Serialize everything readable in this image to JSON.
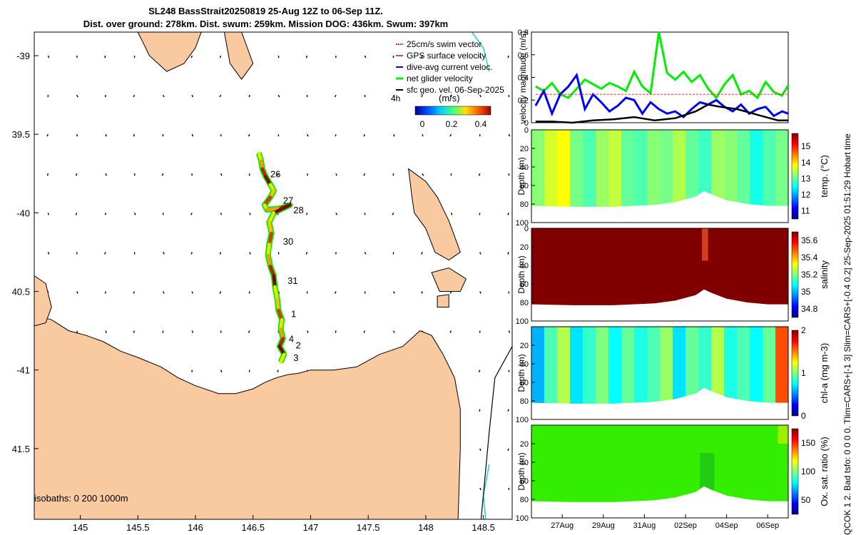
{
  "header": {
    "title_line1": "SL248 BassStrait20250819 25-Aug 12Z to 06-Sep 11Z.",
    "title_line2": "Dist. over ground: 278km. Dist. swum: 259km. Mission DOG: 436km. Swum: 397km"
  },
  "side_text": "QCOK 1  2. Bad tsfo: 0  0  0  0. Tlim=CARS+[-1 3] Slim=CARS+[-0.4 0.2] 25-Sep-2025 01:51:29 Hobart time",
  "colors": {
    "land": "#f9c9a0",
    "swim": "#ff2020",
    "gps": "#c040c0",
    "dive": "#0000ff",
    "net": "#00ee00",
    "sfc": "#000000"
  },
  "chart_data": [
    {
      "type": "map",
      "xlim": [
        144.6,
        148.75
      ],
      "ylim": [
        -41.95,
        -38.85
      ],
      "xticks": [
        145,
        145.5,
        146,
        146.5,
        147,
        147.5,
        148,
        148.5
      ],
      "xtick_labels": [
        "145",
        "145.5",
        "146",
        "146.5",
        "147",
        "147.5",
        "148",
        "148.5"
      ],
      "yticks": [
        -39,
        -39.5,
        -40,
        -40.5,
        -41,
        -41.5
      ],
      "ytick_labels": [
        "-39",
        "39.5",
        "-40",
        "40.5",
        "-41",
        "41.5"
      ],
      "legend": {
        "entries": [
          "25cm/s swim vector",
          "GPS surface velocity",
          "dive-avg current veloc.",
          "net glider velocity",
          "sfc geo. vel. 06-Sep-2025"
        ],
        "scale_label": "4h",
        "colorbar_label": "(m/s)",
        "colorbar_ticks": [
          "0",
          "0.2",
          "0.4"
        ]
      },
      "isobath_label": "isobaths: 0   200  1000m",
      "day_labels": [
        {
          "label": "26",
          "lon": 146.65,
          "lat": -39.75
        },
        {
          "label": "27",
          "lon": 146.76,
          "lat": -39.92
        },
        {
          "label": "28",
          "lon": 146.85,
          "lat": -39.98
        },
        {
          "label": "30",
          "lon": 146.76,
          "lat": -40.18
        },
        {
          "label": "31",
          "lon": 146.8,
          "lat": -40.43
        },
        {
          "label": "1",
          "lon": 146.83,
          "lat": -40.64
        },
        {
          "label": "4",
          "lon": 146.81,
          "lat": -40.8
        },
        {
          "label": "2",
          "lon": 146.87,
          "lat": -40.84
        },
        {
          "label": "3",
          "lon": 146.85,
          "lat": -40.92
        }
      ],
      "track": [
        [
          146.55,
          -39.62
        ],
        [
          146.57,
          -39.67
        ],
        [
          146.58,
          -39.72
        ],
        [
          146.61,
          -39.77
        ],
        [
          146.65,
          -39.82
        ],
        [
          146.68,
          -39.86
        ],
        [
          146.65,
          -39.9
        ],
        [
          146.6,
          -39.95
        ],
        [
          146.62,
          -39.98
        ],
        [
          146.74,
          -39.97
        ],
        [
          146.82,
          -39.95
        ],
        [
          146.68,
          -40.0
        ],
        [
          146.64,
          -40.06
        ],
        [
          146.66,
          -40.13
        ],
        [
          146.64,
          -40.2
        ],
        [
          146.63,
          -40.27
        ],
        [
          146.65,
          -40.34
        ],
        [
          146.68,
          -40.4
        ],
        [
          146.69,
          -40.47
        ],
        [
          146.71,
          -40.55
        ],
        [
          146.72,
          -40.62
        ],
        [
          146.75,
          -40.68
        ],
        [
          146.74,
          -40.74
        ],
        [
          146.76,
          -40.8
        ],
        [
          146.73,
          -40.85
        ],
        [
          146.77,
          -40.9
        ],
        [
          146.74,
          -40.95
        ]
      ],
      "tasmania": [
        [
          144.6,
          -40.65
        ],
        [
          144.75,
          -40.68
        ],
        [
          144.9,
          -40.75
        ],
        [
          145.05,
          -40.78
        ],
        [
          145.2,
          -40.82
        ],
        [
          145.35,
          -40.88
        ],
        [
          145.5,
          -40.92
        ],
        [
          145.7,
          -40.98
        ],
        [
          145.85,
          -41.05
        ],
        [
          146.0,
          -41.1
        ],
        [
          146.2,
          -41.15
        ],
        [
          146.35,
          -41.15
        ],
        [
          146.5,
          -41.12
        ],
        [
          146.6,
          -41.08
        ],
        [
          146.7,
          -41.05
        ],
        [
          146.8,
          -41.03
        ],
        [
          146.9,
          -41.02
        ],
        [
          147.0,
          -41.0
        ],
        [
          147.2,
          -41.0
        ],
        [
          147.4,
          -40.98
        ],
        [
          147.6,
          -40.9
        ],
        [
          147.8,
          -40.85
        ],
        [
          147.95,
          -40.75
        ],
        [
          148.05,
          -40.78
        ],
        [
          148.15,
          -40.9
        ],
        [
          148.25,
          -41.05
        ],
        [
          148.3,
          -41.25
        ],
        [
          148.3,
          -41.5
        ],
        [
          148.28,
          -41.95
        ],
        [
          144.6,
          -41.95
        ]
      ],
      "king_island": [
        [
          144.6,
          -40.4
        ],
        [
          144.7,
          -40.45
        ],
        [
          144.75,
          -40.6
        ],
        [
          144.7,
          -40.7
        ],
        [
          144.6,
          -40.72
        ]
      ],
      "flinders_island": [
        [
          147.85,
          -39.72
        ],
        [
          148.0,
          -39.8
        ],
        [
          148.1,
          -39.9
        ],
        [
          148.2,
          -40.05
        ],
        [
          148.25,
          -40.15
        ],
        [
          148.3,
          -40.25
        ],
        [
          148.2,
          -40.3
        ],
        [
          148.08,
          -40.25
        ],
        [
          148.0,
          -40.1
        ],
        [
          147.9,
          -40.0
        ],
        [
          147.88,
          -39.9
        ]
      ],
      "cape_barren": [
        [
          148.05,
          -40.38
        ],
        [
          148.2,
          -40.35
        ],
        [
          148.35,
          -40.42
        ],
        [
          148.3,
          -40.5
        ],
        [
          148.12,
          -40.5
        ]
      ],
      "clarke_island": [
        [
          148.1,
          -40.53
        ],
        [
          148.2,
          -40.52
        ],
        [
          148.2,
          -40.6
        ],
        [
          148.1,
          -40.6
        ]
      ],
      "wilsons_prom": [
        [
          145.5,
          -38.85
        ],
        [
          146.05,
          -38.85
        ],
        [
          146.0,
          -38.95
        ],
        [
          145.9,
          -39.05
        ],
        [
          145.75,
          -39.1
        ],
        [
          145.6,
          -39.0
        ]
      ],
      "wilsons_tip": [
        [
          146.25,
          -38.85
        ],
        [
          146.4,
          -38.85
        ],
        [
          146.45,
          -38.95
        ],
        [
          146.5,
          -39.05
        ],
        [
          146.4,
          -39.15
        ],
        [
          146.3,
          -39.05
        ]
      ],
      "vector_spacing": 0.25
    },
    {
      "type": "line",
      "ylabel": "velocity magnitude (m/s)",
      "xlim": [
        0,
        12.5
      ],
      "ylim": [
        0,
        0.8
      ],
      "yticks": [
        0,
        0.2,
        0.4,
        0.6,
        0.8
      ],
      "ytick_labels": [
        "0",
        "0.2",
        "0.4",
        "0.6",
        "0.8"
      ],
      "series": [
        {
          "name": "net glider velocity",
          "color": "#00ee00",
          "x": [
            0.2,
            0.6,
            1.0,
            1.4,
            1.8,
            2.2,
            2.6,
            3.0,
            3.4,
            3.8,
            4.2,
            4.6,
            5.0,
            5.4,
            5.8,
            6.2,
            6.6,
            7.0,
            7.4,
            7.8,
            8.2,
            8.6,
            9.0,
            9.4,
            9.8,
            10.2,
            10.6,
            11.0,
            11.4,
            11.8,
            12.2,
            12.5
          ],
          "values": [
            0.32,
            0.28,
            0.35,
            0.25,
            0.22,
            0.3,
            0.38,
            0.34,
            0.3,
            0.35,
            0.32,
            0.28,
            0.45,
            0.32,
            0.26,
            0.8,
            0.44,
            0.38,
            0.45,
            0.36,
            0.42,
            0.3,
            0.22,
            0.34,
            0.42,
            0.25,
            0.28,
            0.22,
            0.36,
            0.27,
            0.24,
            0.33
          ]
        },
        {
          "name": "dive-avg current veloc.",
          "color": "#0000ff",
          "x": [
            0.2,
            0.6,
            1.0,
            1.4,
            1.8,
            2.2,
            2.6,
            3.0,
            3.4,
            3.8,
            4.2,
            4.6,
            5.0,
            5.4,
            5.8,
            6.2,
            6.6,
            7.0,
            7.4,
            7.8,
            8.2,
            8.6,
            9.0,
            9.4,
            9.8,
            10.2,
            10.6,
            11.0,
            11.4,
            11.8,
            12.2,
            12.5
          ],
          "values": [
            0.15,
            0.28,
            0.08,
            0.25,
            0.32,
            0.42,
            0.12,
            0.25,
            0.18,
            0.1,
            0.15,
            0.22,
            0.2,
            0.08,
            0.18,
            0.12,
            0.08,
            0.1,
            0.05,
            0.12,
            0.18,
            0.16,
            0.2,
            0.14,
            0.1,
            0.16,
            0.08,
            0.12,
            0.14,
            0.06,
            0.1,
            0.08
          ]
        },
        {
          "name": "sfc geo. vel.",
          "color": "#000000",
          "x": [
            0.2,
            1,
            2,
            3,
            4,
            5,
            6,
            7,
            8,
            8.6,
            9.2,
            10,
            11,
            12,
            12.5
          ],
          "values": [
            0.01,
            0.01,
            0.0,
            0.02,
            0.03,
            0.05,
            0.02,
            0.04,
            0.1,
            0.16,
            0.14,
            0.12,
            0.07,
            0.02,
            0.02
          ]
        },
        {
          "name": "25cm/s swim vector",
          "color": "#ff2020",
          "x": [
            0.2,
            12.5
          ],
          "values": [
            0.25,
            0.25
          ]
        }
      ]
    },
    {
      "type": "heatmap",
      "variable": "temp",
      "colorbar_label": "temp. (°C)",
      "clim": [
        10.5,
        15.8
      ],
      "cticks": [
        "15",
        "14",
        "13",
        "12",
        "11"
      ],
      "ylabel": "Depth (m)",
      "yticks": [
        "0",
        "20",
        "40",
        "60",
        "80",
        "100"
      ],
      "base_value": 13.2,
      "stripe_values": [
        13.0,
        13.4,
        13.2,
        12.9,
        13.5,
        13.1,
        13.3,
        12.8,
        13.6,
        13.0,
        13.4,
        12.7,
        12.4,
        13.2,
        13.5,
        13.1
      ],
      "column_values": [
        13.2,
        13.6,
        13.8,
        13.1,
        12.9,
        13.3,
        13.5,
        13.0,
        12.9,
        13.2,
        13.1,
        13.4,
        13.0,
        12.8,
        13.3,
        13.2,
        13.0,
        12.6,
        12.9,
        13.1
      ],
      "ylim_depth": [
        0,
        100
      ],
      "xlim": [
        0,
        12.5
      ],
      "bottom": [
        [
          0,
          82
        ],
        [
          1,
          82
        ],
        [
          2,
          82
        ],
        [
          3,
          82
        ],
        [
          4,
          82
        ],
        [
          5,
          82
        ],
        [
          6,
          80
        ],
        [
          7,
          77
        ],
        [
          8,
          72
        ],
        [
          8.4,
          65
        ],
        [
          8.8,
          70
        ],
        [
          9.5,
          76
        ],
        [
          10.5,
          80
        ],
        [
          11.5,
          82
        ],
        [
          12.5,
          82
        ]
      ]
    },
    {
      "type": "heatmap",
      "variable": "salinity",
      "colorbar_label": "salinity",
      "clim": [
        34.7,
        35.7
      ],
      "cticks": [
        "35.6",
        "35.4",
        "35.2",
        "35",
        "34.8"
      ],
      "ylabel": "Depth (m)",
      "yticks": [
        "0",
        "20",
        "40",
        "60",
        "80",
        "100"
      ],
      "base_value": 35.7,
      "anomaly_value": 35.55,
      "anomaly_x": [
        8.3,
        8.6
      ],
      "xlim": [
        0,
        12.5
      ]
    },
    {
      "type": "heatmap",
      "variable": "chl-a",
      "colorbar_label": "chl-a (mg m-3)",
      "clim": [
        0,
        2
      ],
      "cticks": [
        "2",
        "1",
        "0"
      ],
      "ylabel": "Depth (m)",
      "yticks": [
        "20",
        "40",
        "60",
        "80",
        "100"
      ],
      "base_value": 0.85,
      "stripe_values": [
        0.6,
        0.85,
        0.95,
        0.8,
        1.0,
        0.9,
        0.75,
        0.95,
        1.1,
        0.8,
        0.9,
        0.65,
        0.85,
        1.0,
        0.9,
        1.05
      ],
      "column_values": [
        0.6,
        0.9,
        1.1,
        0.7,
        0.85,
        1.0,
        0.75,
        0.95,
        0.8,
        0.9,
        1.05,
        0.7,
        0.95,
        0.85,
        1.1,
        0.8,
        0.9,
        0.75,
        0.95,
        1.6
      ],
      "xlim": [
        0,
        12.5
      ]
    },
    {
      "type": "heatmap",
      "variable": "ox-sat",
      "colorbar_label": "Ox. sat. ratio (%)",
      "clim": [
        25,
        175
      ],
      "cticks": [
        "150",
        "100",
        "50"
      ],
      "ylabel": "Depth (m)",
      "yticks": [
        "20",
        "40",
        "60",
        "80",
        "100"
      ],
      "base_value": 115,
      "xlim": [
        0,
        12.5
      ],
      "xtick_labels": [
        "27Aug",
        "29Aug",
        "31Aug",
        "02Sep",
        "04Sep",
        "06Sep"
      ],
      "xticks": [
        1.5,
        3.5,
        5.5,
        7.5,
        9.5,
        11.5
      ]
    }
  ]
}
